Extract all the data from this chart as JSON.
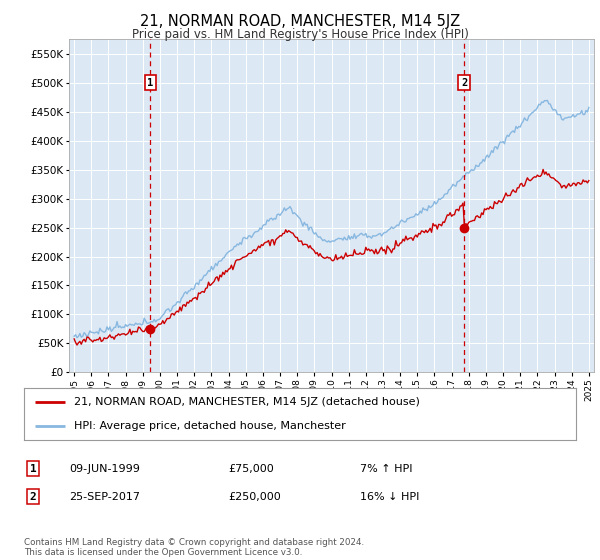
{
  "title": "21, NORMAN ROAD, MANCHESTER, M14 5JZ",
  "subtitle": "Price paid vs. HM Land Registry's House Price Index (HPI)",
  "legend_line1": "21, NORMAN ROAD, MANCHESTER, M14 5JZ (detached house)",
  "legend_line2": "HPI: Average price, detached house, Manchester",
  "annotation1_label": "1",
  "annotation1_date": "09-JUN-1999",
  "annotation1_price": "£75,000",
  "annotation1_hpi": "7% ↑ HPI",
  "annotation1_year": 1999.44,
  "annotation1_value": 75000,
  "annotation2_label": "2",
  "annotation2_date": "25-SEP-2017",
  "annotation2_price": "£250,000",
  "annotation2_hpi": "16% ↓ HPI",
  "annotation2_year": 2017.73,
  "annotation2_value": 250000,
  "copyright": "Contains HM Land Registry data © Crown copyright and database right 2024.\nThis data is licensed under the Open Government Licence v3.0.",
  "line_color_price": "#cc0000",
  "line_color_hpi": "#88b8e0",
  "background_color": "#dde8f5",
  "ylim": [
    0,
    575000
  ],
  "xlim_start": 1994.7,
  "xlim_end": 2025.3
}
